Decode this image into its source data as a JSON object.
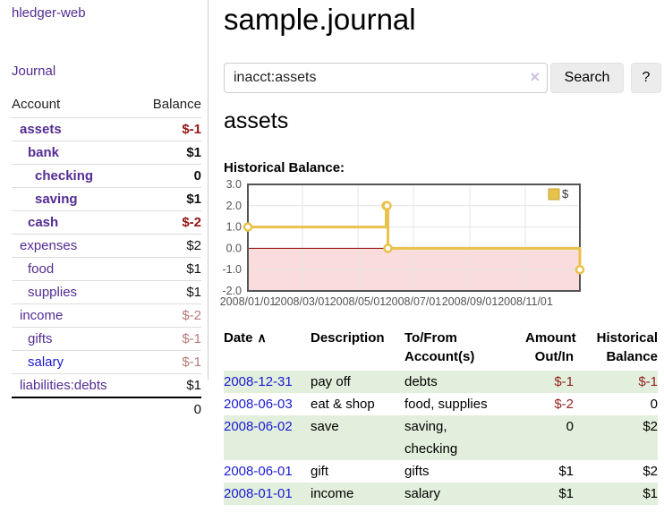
{
  "app": {
    "brand": "hledger-web",
    "nav": {
      "journal": "Journal"
    }
  },
  "colors": {
    "link_purple": "#542c93",
    "link_blue": "#1a1ad6",
    "negative_strong": "#941414",
    "negative_muted": "#b87878",
    "table_negative": "#941f1f",
    "row_stripe_green": "#e2efdc",
    "chart_line_gold": "#e8c24a",
    "chart_negative_fill": "#fbdcdc",
    "chart_zero_line": "#8b0000"
  },
  "sidebar": {
    "header": {
      "account": "Account",
      "balance": "Balance"
    },
    "accounts": [
      {
        "name": "assets",
        "balance": "$-1",
        "depth": 1,
        "bold": true,
        "balance_style": "neg-strong",
        "link_style": "link-purple"
      },
      {
        "name": "bank",
        "balance": "$1",
        "depth": 2,
        "bold": true,
        "balance_style": "pos",
        "link_style": "link-purple"
      },
      {
        "name": "checking",
        "balance": "0",
        "depth": 3,
        "bold": true,
        "balance_style": "pos",
        "link_style": "link-purple"
      },
      {
        "name": "saving",
        "balance": "$1",
        "depth": 3,
        "bold": true,
        "balance_style": "pos",
        "link_style": "link-purple"
      },
      {
        "name": "cash",
        "balance": "$-2",
        "depth": 2,
        "bold": true,
        "balance_style": "neg-strong",
        "link_style": "link-purple"
      },
      {
        "name": "expenses",
        "balance": "$2",
        "depth": 1,
        "bold": false,
        "balance_style": "pos",
        "link_style": "link-purple"
      },
      {
        "name": "food",
        "balance": "$1",
        "depth": 2,
        "bold": false,
        "balance_style": "pos",
        "link_style": "link-purple"
      },
      {
        "name": "supplies",
        "balance": "$1",
        "depth": 2,
        "bold": false,
        "balance_style": "pos",
        "link_style": "link-purple"
      },
      {
        "name": "income",
        "balance": "$-2",
        "depth": 1,
        "bold": false,
        "balance_style": "neg-muted",
        "link_style": "link-purple"
      },
      {
        "name": "gifts",
        "balance": "$-1",
        "depth": 2,
        "bold": false,
        "balance_style": "neg-muted",
        "link_style": "link-purple"
      },
      {
        "name": "salary",
        "balance": "$-1",
        "depth": 2,
        "bold": false,
        "balance_style": "neg-muted",
        "link_style": "link-blue"
      },
      {
        "name": "liabilities:debts",
        "balance": "$1",
        "depth": 1,
        "bold": false,
        "balance_style": "pos",
        "link_style": "link-purple"
      }
    ],
    "total": "0"
  },
  "main": {
    "title": "sample.journal",
    "search": {
      "value": "inacct:assets",
      "clear_icon": "×",
      "search_button": "Search",
      "help_button": "?"
    },
    "account_title": "assets",
    "chart_label": "Historical Balance:"
  },
  "chart_data": {
    "type": "line",
    "step": true,
    "title": "Historical Balance",
    "series": [
      {
        "name": "$",
        "color": "#e8c24a",
        "points": [
          [
            "2008-01-01",
            1
          ],
          [
            "2008-06-01",
            2
          ],
          [
            "2008-06-02",
            2
          ],
          [
            "2008-06-03",
            0
          ],
          [
            "2008-12-31",
            -1
          ]
        ]
      }
    ],
    "x_range": [
      "2008-01-01",
      "2008-12-31"
    ],
    "ylim": [
      -2,
      3
    ],
    "y_ticks": [
      "3.0",
      "2.0",
      "1.0",
      "0.0",
      "-1.0",
      "-2.0"
    ],
    "x_ticks": [
      [
        "2008-01-01",
        "2008/01/01"
      ],
      [
        "2008-03-01",
        "2008/03/01"
      ],
      [
        "2008-05-01",
        "2008/05/01"
      ],
      [
        "2008-07-01",
        "2008/07/01"
      ],
      [
        "2008-09-01",
        "2008/09/01"
      ],
      [
        "2008-11-01",
        "2008/11/01"
      ]
    ],
    "grid": true,
    "legend": {
      "label": "$",
      "position": "top-right"
    },
    "negative_region_fill": "#fbdcdc",
    "zero_line_color": "#8b0000",
    "border_color": "#545454",
    "grid_color": "#e4e4e4"
  },
  "register": {
    "columns": [
      {
        "lines": [
          "Date"
        ]
      },
      {
        "lines": [
          "Description"
        ]
      },
      {
        "lines": [
          "To/From",
          "Account(s)"
        ]
      },
      {
        "lines": [
          "Amount",
          "Out/In"
        ]
      },
      {
        "lines": [
          "Historical",
          "Balance"
        ]
      }
    ],
    "sort_icon": "∧",
    "rows": [
      {
        "date": "2008-12-31",
        "description": "pay off",
        "accounts": "debts",
        "amount": "$-1",
        "amount_neg": true,
        "balance": "$-1",
        "balance_neg": true
      },
      {
        "date": "2008-06-03",
        "description": "eat & shop",
        "accounts": "food, supplies",
        "amount": "$-2",
        "amount_neg": true,
        "balance": "0",
        "balance_neg": false
      },
      {
        "date": "2008-06-02",
        "description": "save",
        "accounts": "saving,\nchecking",
        "amount": "0",
        "amount_neg": false,
        "balance": "$2",
        "balance_neg": false
      },
      {
        "date": "2008-06-01",
        "description": "gift",
        "accounts": "gifts",
        "amount": "$1",
        "amount_neg": false,
        "balance": "$2",
        "balance_neg": false
      },
      {
        "date": "2008-01-01",
        "description": "income",
        "accounts": "salary",
        "amount": "$1",
        "amount_neg": false,
        "balance": "$1",
        "balance_neg": false
      }
    ]
  }
}
